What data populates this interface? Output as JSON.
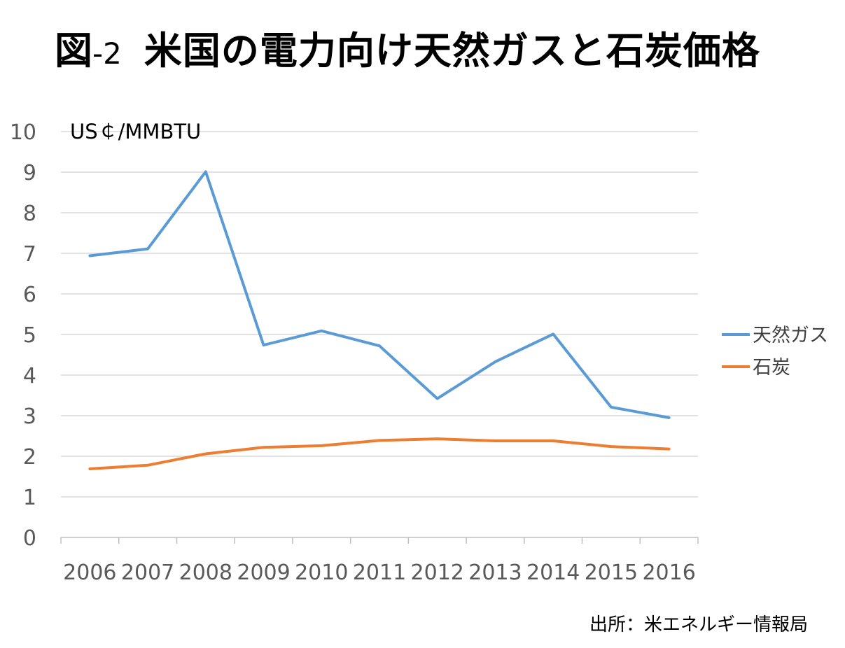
{
  "title": {
    "prefix": "図",
    "number": "-2",
    "main": "米国の電力向け天然ガスと石炭価格"
  },
  "source": "出所：米エネルギー情報局",
  "colors": {
    "gas": "#5B9BD5",
    "coal": "#ED7D31",
    "grid": "#d9d9d9",
    "axis": "#bfbfbf",
    "tick_text": "#595959"
  },
  "chart_data": {
    "type": "line",
    "unit_label": "US￠/MMBTU",
    "categories": [
      "2006",
      "2007",
      "2008",
      "2009",
      "2010",
      "2011",
      "2012",
      "2013",
      "2014",
      "2015",
      "2016"
    ],
    "ylim": [
      0,
      10
    ],
    "yticks": [
      "0",
      "1",
      "2",
      "3",
      "4",
      "5",
      "6",
      "7",
      "8",
      "9",
      "10"
    ],
    "grid": true,
    "legend_position": "right",
    "series": [
      {
        "name": "天然ガス",
        "color": "#5B9BD5",
        "values": [
          6.94,
          7.11,
          9.01,
          4.74,
          5.09,
          4.72,
          3.42,
          4.33,
          5.01,
          3.21,
          2.95
        ]
      },
      {
        "name": "石炭",
        "color": "#ED7D31",
        "values": [
          1.69,
          1.78,
          2.06,
          2.22,
          2.26,
          2.39,
          2.43,
          2.38,
          2.38,
          2.24,
          2.18
        ]
      }
    ]
  }
}
